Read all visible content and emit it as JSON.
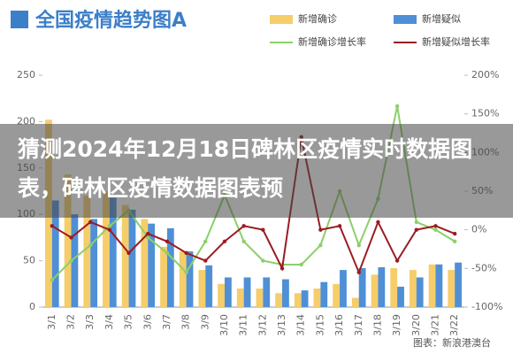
{
  "chart_data": {
    "type": "bar",
    "title": "全国疫情趋势图A",
    "headline": "猜测2024年12月18日碑林区疫情实时数据图表，碑林区疫情数据图表预",
    "source": "图表：新浪港澳台",
    "categories": [
      "3/1",
      "3/2",
      "3/3",
      "3/4",
      "3/5",
      "3/6",
      "3/7",
      "3/8",
      "3/9",
      "3/10",
      "3/11",
      "3/12",
      "3/13",
      "3/14",
      "3/15",
      "3/16",
      "3/17",
      "3/18",
      "3/19",
      "3/20",
      "3/21",
      "3/22"
    ],
    "series": [
      {
        "name": "新增确诊",
        "type": "bar",
        "color": "#f5cd6a",
        "values": [
          202,
          143,
          120,
          125,
          110,
          95,
          65,
          60,
          40,
          25,
          20,
          20,
          15,
          15,
          20,
          25,
          10,
          35,
          42,
          40,
          46,
          40
        ]
      },
      {
        "name": "新增疑似",
        "type": "bar",
        "color": "#4f8fd6",
        "values": [
          115,
          100,
          95,
          118,
          105,
          90,
          85,
          60,
          45,
          32,
          32,
          32,
          30,
          18,
          27,
          40,
          42,
          43,
          22,
          32,
          46,
          48
        ]
      },
      {
        "name": "新增确诊增长率",
        "type": "line",
        "axis": "y2",
        "color": "#8ccf6a",
        "values": [
          -65,
          -40,
          -20,
          5,
          25,
          -10,
          -30,
          -55,
          -15,
          45,
          -15,
          -40,
          -45,
          -45,
          -20,
          50,
          -20,
          40,
          160,
          10,
          0,
          -15
        ]
      },
      {
        "name": "新增疑似增长率",
        "type": "line",
        "axis": "y2",
        "color": "#9b1c22",
        "values": [
          5,
          -10,
          10,
          0,
          -30,
          -5,
          -15,
          -30,
          -40,
          -15,
          5,
          0,
          -50,
          120,
          0,
          5,
          -55,
          10,
          -40,
          0,
          5,
          -5
        ]
      }
    ],
    "ylim": [
      0,
      250
    ],
    "yticks": [
      0,
      50,
      100,
      150,
      200,
      250
    ],
    "y2lim": [
      -100,
      200
    ],
    "y2ticks": [
      {
        "value": -100,
        "label": "-100%"
      },
      {
        "value": -50,
        "label": "-50%"
      },
      {
        "value": 0,
        "label": "0%"
      },
      {
        "value": 50,
        "label": "50%"
      },
      {
        "value": 100,
        "label": "100%"
      },
      {
        "value": 150,
        "label": "150%"
      },
      {
        "value": 200,
        "label": "200%"
      }
    ],
    "grid": false
  }
}
